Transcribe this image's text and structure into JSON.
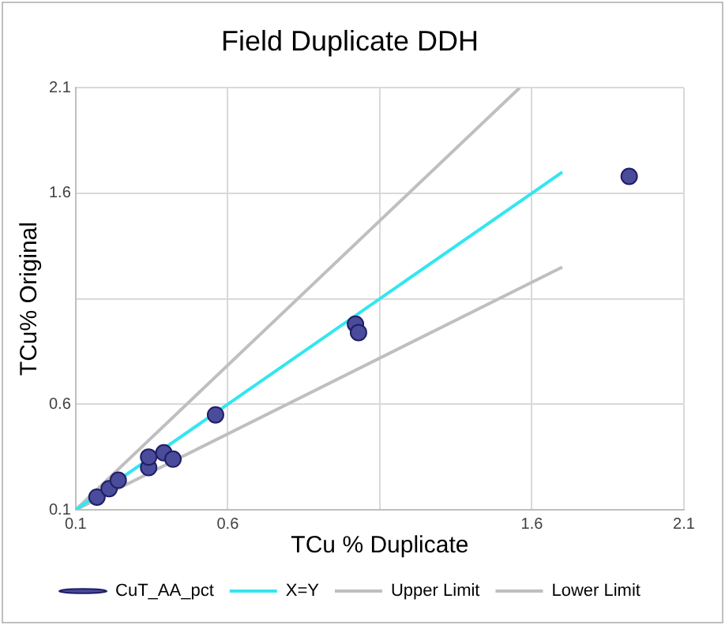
{
  "chart_data": {
    "type": "scatter",
    "title": "Field Duplicate DDH",
    "xlabel": "TCu % Duplicate",
    "ylabel": "TCu% Original",
    "xlim": [
      0.1,
      2.1
    ],
    "ylim": [
      0.1,
      2.1
    ],
    "xticks": [
      0.1,
      0.6,
      {
        "value": 1.1,
        "label": null
      },
      1.6,
      2.1
    ],
    "yticks": [
      0.1,
      0.6,
      {
        "value": 1.1,
        "label": null
      },
      1.6,
      2.1
    ],
    "grid": true,
    "legend": "bottom",
    "series": [
      {
        "name": "CuT_AA_pct",
        "type": "scatter",
        "marker": "circle",
        "color": "#4b4b9b",
        "x": [
          0.17,
          0.21,
          0.24,
          0.34,
          0.34,
          0.39,
          0.42,
          0.56,
          1.02,
          1.03,
          1.92
        ],
        "values": [
          0.16,
          0.2,
          0.24,
          0.3,
          0.35,
          0.37,
          0.34,
          0.55,
          0.98,
          0.94,
          1.68
        ]
      },
      {
        "name": "X=Y",
        "type": "line",
        "marker": "none",
        "color": "#33e6f0",
        "x": [
          0.1,
          1.7
        ],
        "values": [
          0.1,
          1.7
        ]
      },
      {
        "name": "Upper Limit",
        "type": "line",
        "marker": "none",
        "color": "#bfbfbf",
        "x": [
          0.1,
          1.56
        ],
        "values": [
          0.1,
          2.1
        ]
      },
      {
        "name": "Lower Limit",
        "type": "line",
        "marker": "none",
        "color": "#bfbfbf",
        "x": [
          0.1,
          1.7
        ],
        "values": [
          0.1,
          1.25
        ]
      }
    ]
  }
}
